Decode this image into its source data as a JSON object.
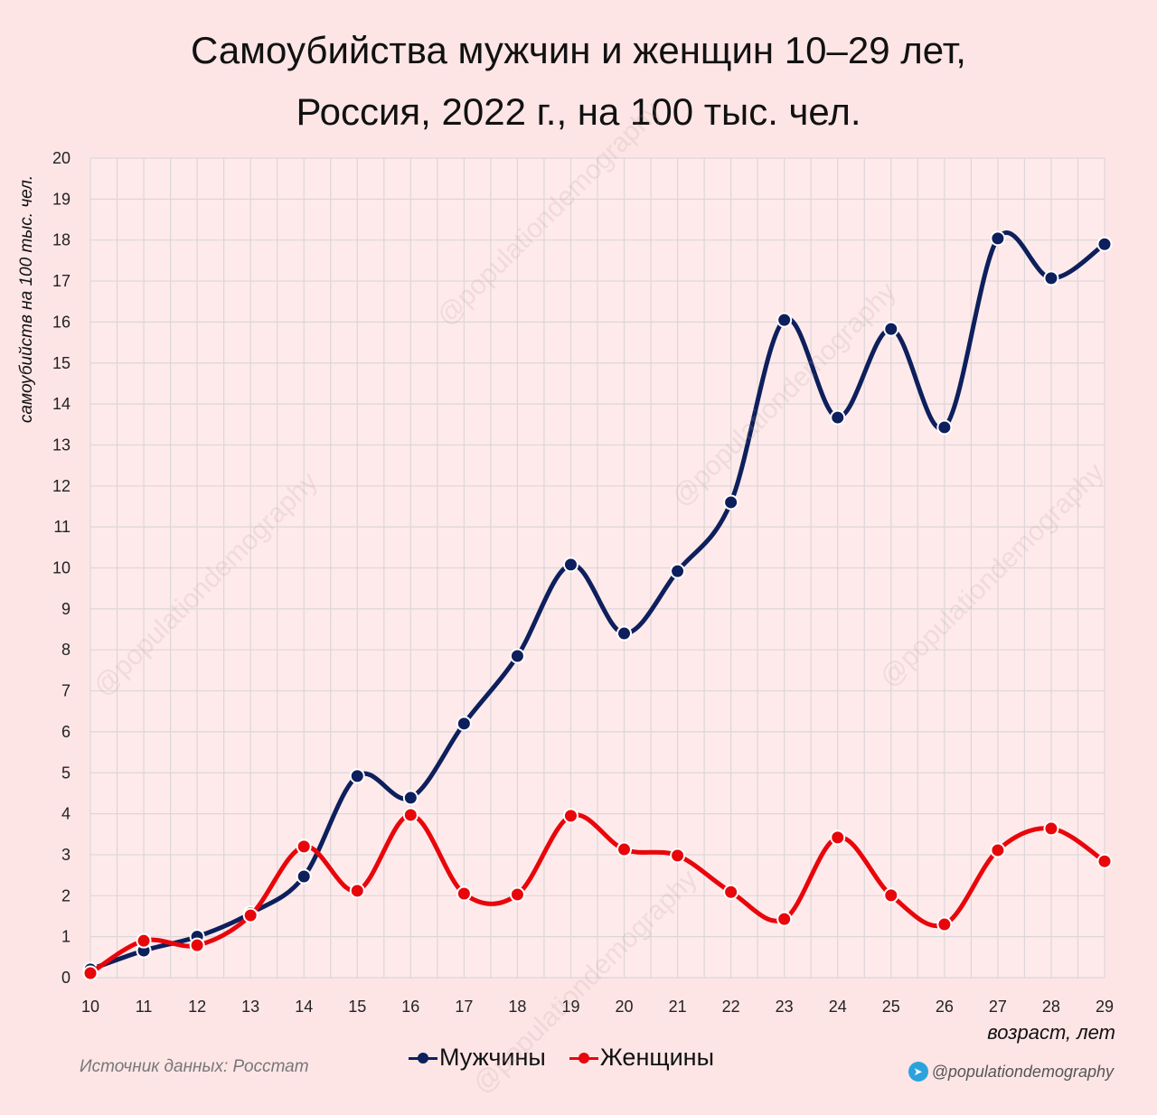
{
  "chart_data": {
    "type": "line",
    "title": "Самоубийства мужчин и женщин 10–29 лет,",
    "subtitle": "Россия, 2022 г., на 100 тыс. чел.",
    "xlabel": "возраст, лет",
    "ylabel": "самоубийств на 100 тыс. чел.",
    "x": [
      10,
      11,
      12,
      13,
      14,
      15,
      16,
      17,
      18,
      19,
      20,
      21,
      22,
      23,
      24,
      25,
      26,
      27,
      28,
      29
    ],
    "ylim": [
      0,
      20
    ],
    "yticks": [
      0,
      1,
      2,
      3,
      4,
      5,
      6,
      7,
      8,
      9,
      10,
      11,
      12,
      13,
      14,
      15,
      16,
      17,
      18,
      19,
      20
    ],
    "grid": true,
    "legend_position": "bottom-center",
    "series": [
      {
        "name": "Мужчины",
        "color": "#0d1f5c",
        "values": [
          0.2,
          0.66,
          1.0,
          1.57,
          2.47,
          4.92,
          4.39,
          6.2,
          7.85,
          10.08,
          8.4,
          9.92,
          11.6,
          16.05,
          13.67,
          15.83,
          13.43,
          18.04,
          17.07,
          17.9
        ]
      },
      {
        "name": "Женщины",
        "color": "#e8060b",
        "values": [
          0.11,
          0.9,
          0.79,
          1.52,
          3.2,
          2.12,
          3.97,
          2.05,
          2.03,
          3.95,
          3.13,
          2.98,
          2.09,
          1.43,
          3.42,
          2.01,
          1.3,
          3.11,
          3.64,
          2.84
        ]
      }
    ]
  },
  "footer": {
    "source": "Источник данных: Росстат",
    "handle": "@populationdemography",
    "telegram_icon": "telegram-icon"
  },
  "watermark": "@populationdemography"
}
